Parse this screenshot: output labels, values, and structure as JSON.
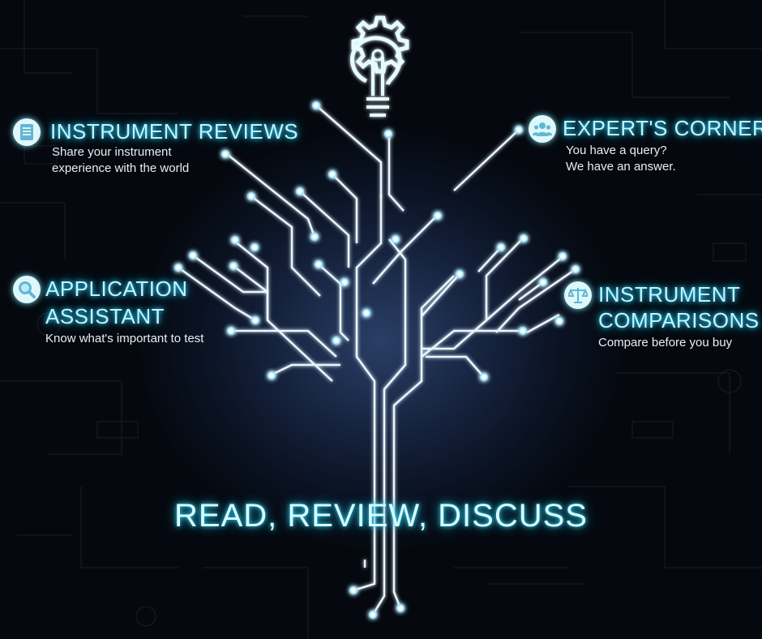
{
  "features": {
    "reviews": {
      "title": "INSTRUMENT REVIEWS",
      "desc1": "Share your instrument",
      "desc2": "experience with the world",
      "icon": "document-icon"
    },
    "expert": {
      "title": "EXPERT'S CORNER",
      "desc1": "You have a query?",
      "desc2": "We have an answer.",
      "icon": "group-icon"
    },
    "application": {
      "title1": "APPLICATION",
      "title2": "ASSISTANT",
      "desc1": "Know what's important to test",
      "icon": "magnifier-icon"
    },
    "comparisons": {
      "title1": "INSTRUMENT",
      "title2": "COMPARISONS",
      "desc1": "Compare before you buy",
      "icon": "scales-icon"
    }
  },
  "tagline": "READ, REVIEW, DISCUSS",
  "colors": {
    "glow": "#2fd9ff",
    "text": "#bff4ff",
    "background": "#05090f"
  }
}
